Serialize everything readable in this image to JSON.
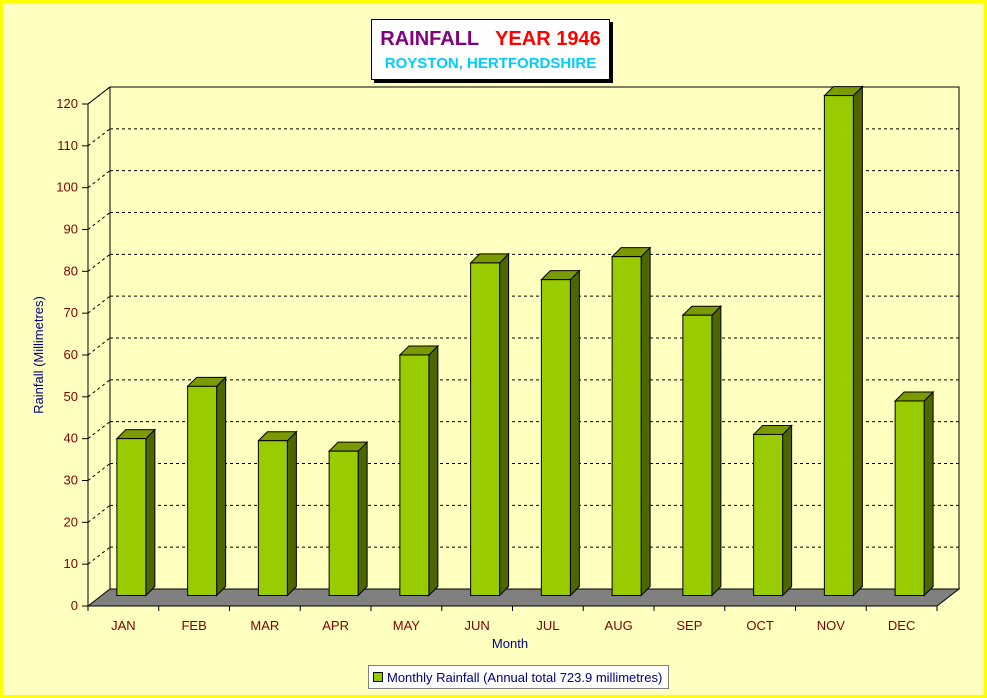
{
  "chart_data": {
    "type": "bar",
    "title_part1": "RAINFALL",
    "title_part2": "YEAR 1946",
    "subtitle": "ROYSTON, HERTFORDSHIRE",
    "xlabel": "Month",
    "ylabel": "Rainfall  (Millimetres)",
    "ylim": [
      0,
      120
    ],
    "yticks": [
      0,
      10,
      20,
      30,
      40,
      50,
      60,
      70,
      80,
      90,
      100,
      110,
      120
    ],
    "categories": [
      "JAN",
      "FEB",
      "MAR",
      "APR",
      "MAY",
      "JUN",
      "JUL",
      "AUG",
      "SEP",
      "OCT",
      "NOV",
      "DEC"
    ],
    "series": [
      {
        "name": "Monthly Rainfall (Annual total 723.9 millimetres)",
        "values": [
          37.5,
          50.0,
          37.0,
          34.5,
          57.5,
          79.5,
          75.5,
          81.0,
          67.0,
          38.5,
          119.5,
          46.5
        ]
      }
    ],
    "grid": true,
    "legend_position": "bottom-center",
    "colors": {
      "bar_front": "#99cc00",
      "bar_side": "#4d6600",
      "bar_top": "#7a9a00",
      "floor": "#808080",
      "background": "#ffffc0",
      "border": "#ffff00"
    }
  }
}
